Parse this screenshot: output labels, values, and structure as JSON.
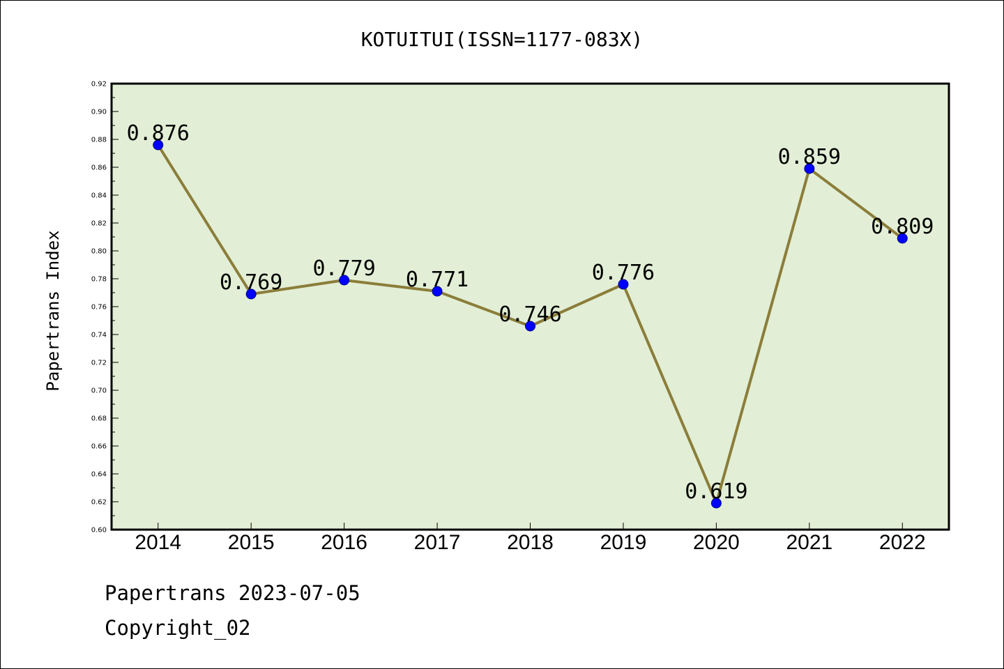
{
  "chart_data": {
    "type": "line",
    "title": "KOTUITUI(ISSN=1177-083X)",
    "xlabel": "",
    "ylabel": "Papertrans Index",
    "categories": [
      "2014",
      "2015",
      "2016",
      "2017",
      "2018",
      "2019",
      "2020",
      "2021",
      "2022"
    ],
    "series": [
      {
        "values": [
          0.876,
          0.769,
          0.779,
          0.771,
          0.746,
          0.776,
          0.619,
          0.859,
          0.809
        ]
      }
    ],
    "data_labels": [
      "0.876",
      "0.769",
      "0.779",
      "0.771",
      "0.746",
      "0.776",
      "0.619",
      "0.859",
      "0.809"
    ],
    "ylim": [
      0.6,
      0.92
    ],
    "yticks": [
      0.6,
      0.62,
      0.64,
      0.66,
      0.68,
      0.7,
      0.72,
      0.74,
      0.76,
      0.78,
      0.8,
      0.82,
      0.84,
      0.86,
      0.88,
      0.9,
      0.92
    ],
    "ytick_labels": [
      "0.60",
      "0.62",
      "0.64",
      "0.66",
      "0.68",
      "0.70",
      "0.72",
      "0.74",
      "0.76",
      "0.78",
      "0.80",
      "0.82",
      "0.84",
      "0.86",
      "0.88",
      "0.90",
      "0.92"
    ],
    "grid": false,
    "legend": "none",
    "colors": {
      "plot_background": "#e2efd6",
      "line": "#8b7d3a",
      "marker": "#0000ff",
      "marker_edge": "#000080"
    }
  },
  "footer": {
    "source": "Papertrans 2023-07-05",
    "copyright": "Copyright_02"
  }
}
